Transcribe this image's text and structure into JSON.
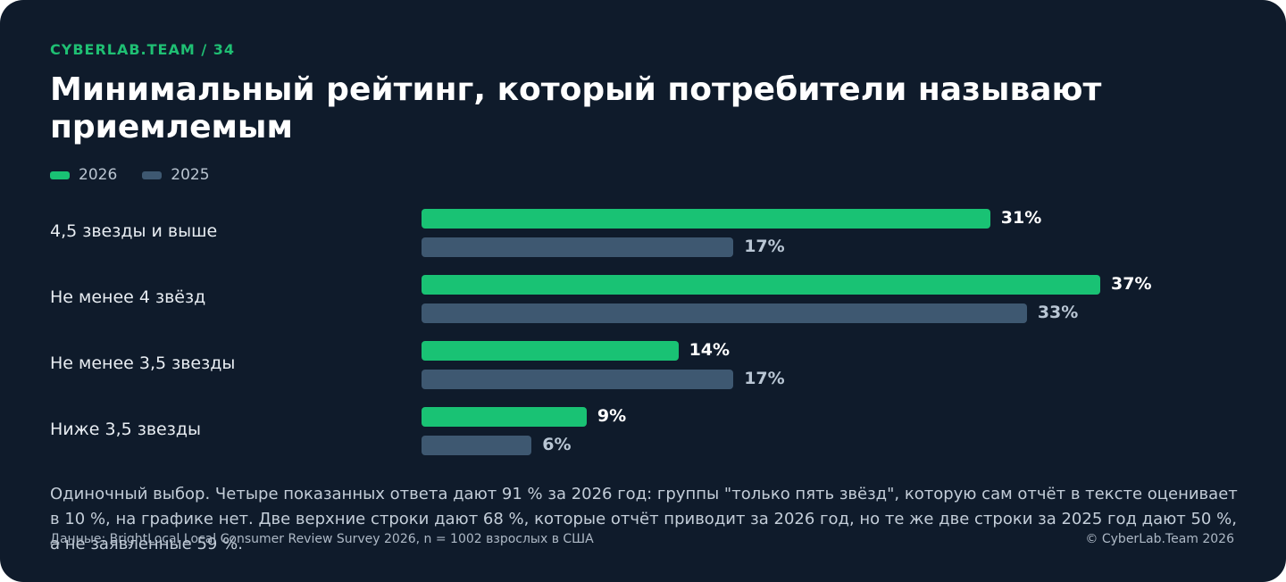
{
  "header": {
    "brand": "CYBERLAB.TEAM / 34",
    "title": "Минимальный рейтинг, который потребители называют приемлемым"
  },
  "legend": [
    {
      "label": "2026",
      "color": "#19c274"
    },
    {
      "label": "2025",
      "color": "#3e5871"
    }
  ],
  "chart_data": {
    "type": "bar",
    "orientation": "horizontal",
    "categories": [
      "4,5 звезды и выше",
      "Не менее 4 звёзд",
      "Не менее 3,5 звезды",
      "Ниже 3,5 звезды"
    ],
    "series": [
      {
        "name": "2026",
        "values": [
          31,
          37,
          14,
          9
        ],
        "labels": [
          "31%",
          "37%",
          "14%",
          "9%"
        ]
      },
      {
        "name": "2025",
        "values": [
          17,
          33,
          17,
          6
        ],
        "labels": [
          "17%",
          "33%",
          "17%",
          "6%"
        ]
      }
    ],
    "grid": false,
    "legend_position": "top-left"
  },
  "note": "Одиночный выбор. Четыре показанных ответа дают 91 % за 2026 год: группы \"только пять звёзд\", которую сам отчёт в тексте оценивает в 10 %, на графике нет. Две верхние строки дают 68 %, которые отчёт приводит за 2026 год, но те же две строки за 2025 год дают 50 %, а не заявленные 59 %.",
  "footer": {
    "source": "Данные: BrightLocal Local Consumer Review Survey 2026, n = 1002 взрослых в США",
    "copyright": "© CyberLab.Team  2026"
  },
  "colors": {
    "background": "#0f1b2b",
    "accent": "#19c274",
    "secondary": "#3e5871",
    "value_2026": "#ffffff",
    "value_2025": "#b9c6d4"
  }
}
